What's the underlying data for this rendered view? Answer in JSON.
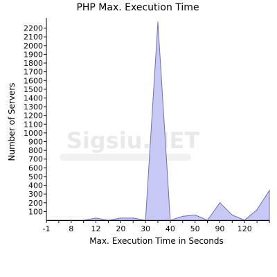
{
  "chart_data": {
    "type": "area",
    "title": "PHP Max. Execution Time",
    "xlabel": "Max. Execution Time in Seconds",
    "ylabel": "Number of Servers",
    "x_tick_labels": [
      "-1",
      "8",
      "12",
      "20",
      "30",
      "40",
      "50",
      "90",
      "120"
    ],
    "y_ticks": [
      100,
      200,
      300,
      400,
      500,
      600,
      700,
      800,
      900,
      1000,
      1100,
      1200,
      1300,
      1400,
      1500,
      1600,
      1700,
      1800,
      1900,
      2000,
      2100,
      2200
    ],
    "ylim": [
      0,
      2300
    ],
    "series": [
      {
        "points": [
          {
            "x": "-1",
            "y": 0
          },
          {
            "x": "0",
            "y": 0
          },
          {
            "x": "5",
            "y": 0
          },
          {
            "x": "8",
            "y": 0
          },
          {
            "x": "10",
            "y": 25
          },
          {
            "x": "12",
            "y": 0
          },
          {
            "x": "15",
            "y": 25
          },
          {
            "x": "20",
            "y": 25
          },
          {
            "x": "25",
            "y": 0
          },
          {
            "x": "30",
            "y": 2270
          },
          {
            "x": "35",
            "y": 0
          },
          {
            "x": "40",
            "y": 45
          },
          {
            "x": "45",
            "y": 60
          },
          {
            "x": "50",
            "y": 0
          },
          {
            "x": "60",
            "y": 200
          },
          {
            "x": "90",
            "y": 60
          },
          {
            "x": "100",
            "y": 0
          },
          {
            "x": "120",
            "y": 120
          },
          {
            "x": "180",
            "y": 340
          }
        ]
      }
    ],
    "colors": {
      "fill": "#c8c8f4",
      "stroke": "#7070a8",
      "axis": "#000000",
      "background": "#ffffff"
    },
    "grid": false,
    "legend": "none"
  },
  "watermark": {
    "text": "Sigsiu.NET"
  }
}
